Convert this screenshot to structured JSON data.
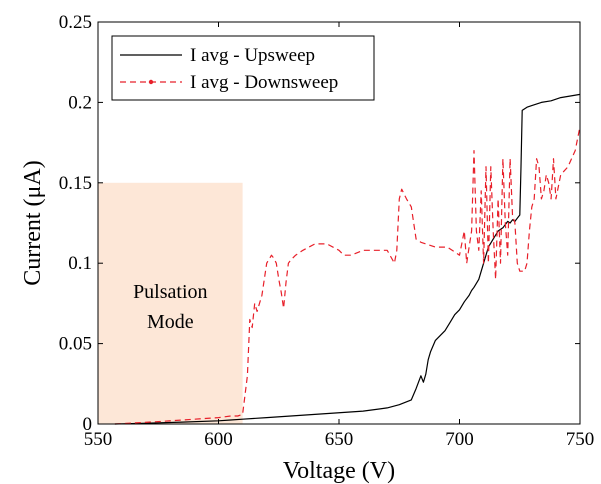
{
  "chart_data": {
    "type": "line",
    "title": "",
    "xlabel": "Voltage (V)",
    "ylabel": "Current (μA)",
    "xlim": [
      550,
      750
    ],
    "ylim": [
      0,
      0.25
    ],
    "xticks": [
      550,
      600,
      650,
      700,
      750
    ],
    "yticks": [
      0,
      0.05,
      0.1,
      0.15,
      0.2,
      0.25
    ],
    "xtick_labels": [
      "550",
      "600",
      "650",
      "700",
      "750"
    ],
    "ytick_labels": [
      "0",
      "0.05",
      "0.1",
      "0.15",
      "0.2",
      "0.25"
    ],
    "grid": false,
    "legend_position": "top-left",
    "series": [
      {
        "name": "I avg - Upsweep",
        "color": "#000000",
        "style": "solid",
        "x": [
          557,
          570,
          585,
          600,
          605,
          610,
          620,
          640,
          660,
          670,
          675,
          680,
          682,
          684,
          685,
          686,
          687,
          688,
          690,
          692,
          694,
          696,
          698,
          700,
          702,
          704,
          705,
          706,
          708,
          710,
          712,
          714,
          716,
          718,
          720,
          721,
          722,
          723,
          724,
          725,
          725.5,
          726,
          728,
          730,
          734,
          738,
          742,
          746,
          750
        ],
        "y": [
          0.0,
          0.0005,
          0.0012,
          0.002,
          0.0025,
          0.003,
          0.004,
          0.006,
          0.008,
          0.01,
          0.012,
          0.015,
          0.022,
          0.03,
          0.026,
          0.031,
          0.04,
          0.045,
          0.052,
          0.055,
          0.058,
          0.063,
          0.068,
          0.071,
          0.076,
          0.08,
          0.083,
          0.085,
          0.09,
          0.1,
          0.11,
          0.115,
          0.12,
          0.122,
          0.126,
          0.125,
          0.127,
          0.126,
          0.128,
          0.13,
          0.16,
          0.195,
          0.197,
          0.198,
          0.2,
          0.201,
          0.203,
          0.204,
          0.205
        ]
      },
      {
        "name": "I avg - Downsweep",
        "color": "#e8202a",
        "style": "dashed",
        "x": [
          557,
          575,
          590,
          600,
          605,
          608,
          610,
          612,
          613,
          614,
          615,
          616,
          618,
          620,
          622,
          623,
          624,
          625,
          626,
          627,
          628,
          629,
          630,
          632,
          635,
          640,
          645,
          650,
          652,
          655,
          660,
          665,
          670,
          673,
          674,
          675,
          676,
          677,
          678,
          680,
          682,
          684,
          686,
          690,
          695,
          700,
          702,
          703,
          704,
          705,
          706,
          707,
          708,
          709,
          710,
          711,
          712,
          713,
          714,
          715,
          716,
          717,
          718,
          719,
          720,
          721,
          722,
          723,
          724,
          725,
          726,
          727,
          728,
          729,
          730,
          731,
          732,
          733,
          734,
          735,
          736,
          737,
          738,
          739,
          740,
          742,
          745,
          748,
          750
        ],
        "y": [
          0.0,
          0.0015,
          0.003,
          0.004,
          0.005,
          0.005,
          0.006,
          0.03,
          0.065,
          0.06,
          0.075,
          0.07,
          0.08,
          0.1,
          0.105,
          0.103,
          0.1,
          0.09,
          0.082,
          0.072,
          0.088,
          0.1,
          0.102,
          0.105,
          0.108,
          0.112,
          0.112,
          0.108,
          0.105,
          0.105,
          0.108,
          0.108,
          0.108,
          0.1,
          0.108,
          0.14,
          0.146,
          0.143,
          0.14,
          0.135,
          0.115,
          0.113,
          0.112,
          0.11,
          0.11,
          0.105,
          0.12,
          0.1,
          0.11,
          0.12,
          0.17,
          0.12,
          0.108,
          0.145,
          0.1,
          0.16,
          0.1,
          0.16,
          0.12,
          0.09,
          0.14,
          0.1,
          0.165,
          0.125,
          0.105,
          0.165,
          0.13,
          0.125,
          0.1,
          0.095,
          0.095,
          0.095,
          0.1,
          0.12,
          0.135,
          0.14,
          0.165,
          0.16,
          0.14,
          0.145,
          0.155,
          0.15,
          0.14,
          0.165,
          0.14,
          0.155,
          0.16,
          0.17,
          0.185
        ]
      }
    ],
    "shaded_region": {
      "x_range": [
        550,
        610
      ],
      "y_range": [
        0,
        0.15
      ],
      "color": "#fde7d7",
      "label_line1": "Pulsation",
      "label_line2": "Mode"
    }
  }
}
